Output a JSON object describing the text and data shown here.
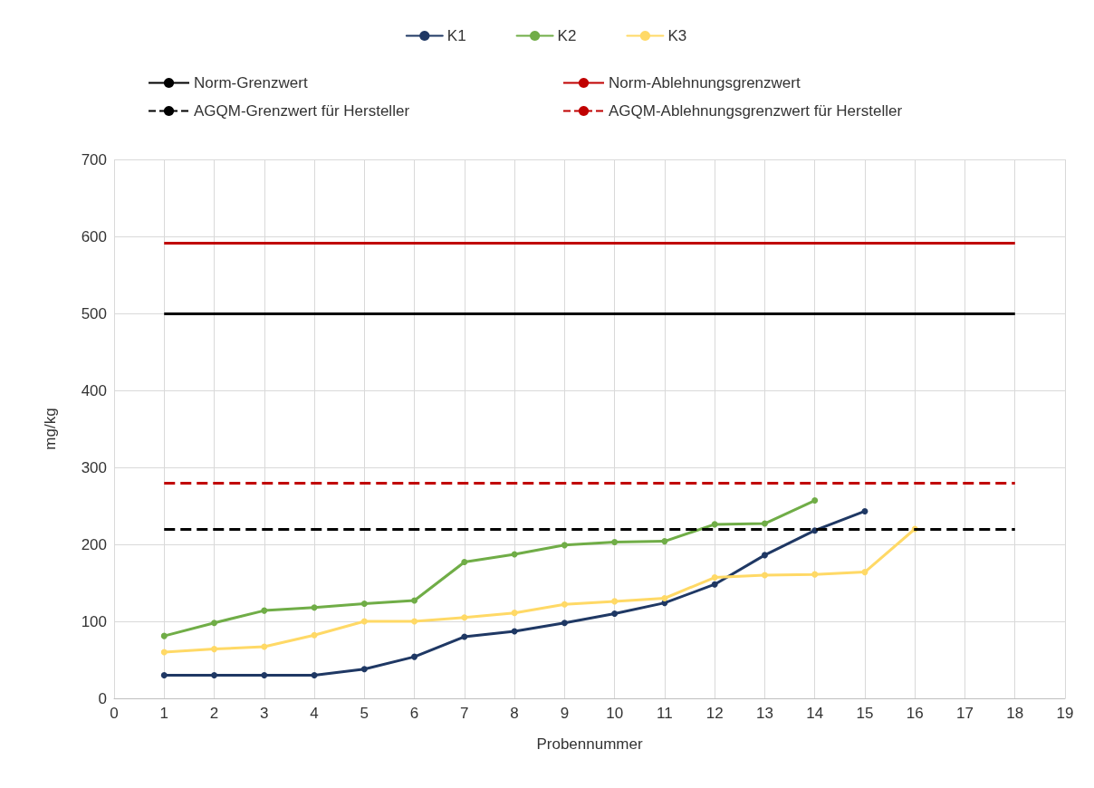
{
  "chart_data": {
    "type": "line",
    "xlabel": "Probennummer",
    "ylabel": "mg/kg",
    "x": [
      1,
      2,
      3,
      4,
      5,
      6,
      7,
      8,
      9,
      10,
      11,
      12,
      13,
      14,
      15,
      16
    ],
    "series": [
      {
        "name": "K1",
        "color": "#1f3864",
        "values": [
          30,
          30,
          30,
          30,
          38,
          54,
          80,
          87,
          98,
          110,
          124,
          148,
          186,
          218,
          243,
          null
        ]
      },
      {
        "name": "K2",
        "color": "#70ad47",
        "values": [
          81,
          98,
          114,
          118,
          123,
          127,
          177,
          187,
          199,
          203,
          204,
          226,
          227,
          257,
          null,
          null
        ]
      },
      {
        "name": "K3",
        "color": "#ffd966",
        "values": [
          60,
          64,
          67,
          82,
          100,
          100,
          105,
          111,
          122,
          126,
          130,
          157,
          160,
          161,
          164,
          220
        ]
      }
    ],
    "ref_lines": [
      {
        "axis": "y",
        "value": 500,
        "label": "Norm-Grenzwert",
        "color": "#000000",
        "line_style": "solid"
      },
      {
        "axis": "y",
        "value": 591,
        "label": "Norm-Ablehnungsgrenzwert",
        "color": "#c00000",
        "line_style": "solid"
      },
      {
        "axis": "y",
        "value": 220,
        "label": "AGQM-Grenzwert für Hersteller",
        "color": "#000000",
        "line_style": "dashed"
      },
      {
        "axis": "y",
        "value": 280,
        "label": "AGQM-Ablehnungsgrenzwert für Hersteller",
        "color": "#c00000",
        "line_style": "dashed"
      }
    ],
    "xlim": [
      0,
      19
    ],
    "xticks": [
      0,
      1,
      2,
      3,
      4,
      5,
      6,
      7,
      8,
      9,
      10,
      11,
      12,
      13,
      14,
      15,
      16,
      17,
      18,
      19
    ],
    "ylim": [
      0,
      700
    ],
    "yticks": [
      0,
      100,
      200,
      300,
      400,
      500,
      600,
      700
    ],
    "grid": true,
    "legend": "top",
    "marker": "circle",
    "line_style": "solid"
  }
}
